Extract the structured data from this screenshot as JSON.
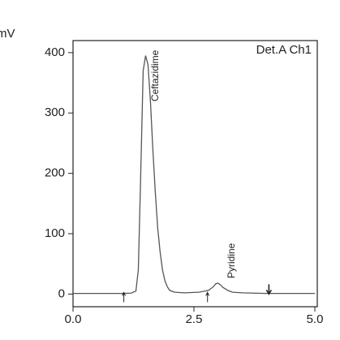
{
  "chart_data": {
    "type": "line",
    "y_label": "mV",
    "detector_label": "Det.A Ch1",
    "annotations": [
      "Ceftazidime",
      "Pyridine"
    ],
    "xlim": [
      0,
      5.05
    ],
    "ylim": [
      -21,
      420
    ],
    "xticks": [
      {
        "value": 0,
        "label": "0.0"
      },
      {
        "value": 2.5,
        "label": "2.5"
      },
      {
        "value": 5,
        "label": "5.0"
      }
    ],
    "yticks": [
      0,
      100,
      200,
      300,
      400
    ],
    "x": [
      0,
      0.5,
      1.0,
      1.2,
      1.3,
      1.35,
      1.4,
      1.45,
      1.5,
      1.55,
      1.6,
      1.65,
      1.7,
      1.75,
      1.8,
      1.85,
      1.9,
      1.95,
      2.0,
      2.1,
      2.3,
      2.6,
      2.8,
      2.9,
      2.95,
      3.0,
      3.05,
      3.1,
      3.2,
      3.3,
      3.5,
      4.0,
      4.5,
      5.0
    ],
    "series": [
      {
        "color": "#555555",
        "values": [
          1,
          1,
          1,
          1.5,
          5,
          40,
          200,
          370,
          395,
          380,
          320,
          240,
          170,
          110,
          70,
          40,
          22,
          12,
          6,
          3,
          2,
          3,
          6,
          12,
          17,
          18,
          15,
          11,
          6,
          3,
          2,
          1,
          1,
          1
        ]
      }
    ],
    "event_markers_up": [
      1.05,
      2.78
    ],
    "event_markers_down": [
      4.05
    ]
  }
}
